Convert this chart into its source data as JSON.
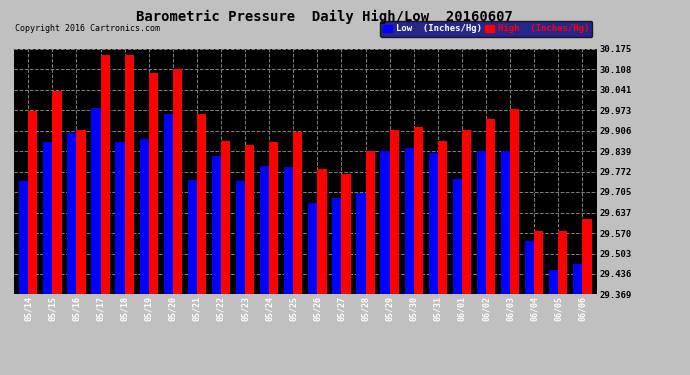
{
  "title": "Barometric Pressure  Daily High/Low  20160607",
  "copyright": "Copyright 2016 Cartronics.com",
  "legend_low": "Low  (Inches/Hg)",
  "legend_high": "High  (Inches/Hg)",
  "dates": [
    "05/14",
    "05/15",
    "05/16",
    "05/17",
    "05/18",
    "05/19",
    "05/20",
    "05/21",
    "05/22",
    "05/23",
    "05/24",
    "05/25",
    "05/26",
    "05/27",
    "05/28",
    "05/29",
    "05/30",
    "05/31",
    "06/01",
    "06/02",
    "06/03",
    "06/04",
    "06/05",
    "06/06"
  ],
  "low": [
    29.74,
    29.87,
    29.9,
    29.98,
    29.87,
    29.88,
    29.96,
    29.745,
    29.822,
    29.742,
    29.79,
    29.788,
    29.67,
    29.685,
    29.702,
    29.84,
    29.848,
    29.832,
    29.748,
    29.84,
    29.838,
    29.543,
    29.448,
    29.47
  ],
  "high": [
    29.97,
    30.038,
    29.908,
    30.155,
    30.155,
    30.095,
    30.11,
    29.96,
    29.873,
    29.86,
    29.87,
    29.903,
    29.782,
    29.765,
    29.84,
    29.907,
    29.918,
    29.872,
    29.908,
    29.945,
    29.978,
    29.578,
    29.578,
    29.615
  ],
  "ylim_min": 29.369,
  "ylim_max": 30.175,
  "yticks": [
    29.369,
    29.436,
    29.503,
    29.57,
    29.637,
    29.705,
    29.772,
    29.839,
    29.906,
    29.973,
    30.041,
    30.108,
    30.175
  ],
  "bar_width": 0.38,
  "low_color": "#0000ff",
  "high_color": "#ff0000",
  "plot_bg_color": "#000000",
  "grid_color": "#808080",
  "outer_bg": "#c0c0c0",
  "title_fontsize": 10,
  "legend_bg": "#000080"
}
